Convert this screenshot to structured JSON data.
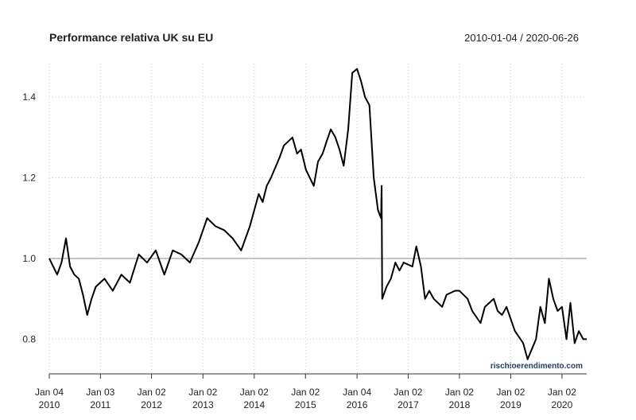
{
  "chart_data": {
    "type": "line",
    "title": "Performance relativa UK su EU",
    "subtitle": "2010-01-04 / 2020-06-26",
    "watermark": "rischioerendimento.com",
    "x": [
      "2010-01-04",
      "2010-02-01",
      "2010-03-01",
      "2010-04-01",
      "2010-05-03",
      "2010-06-01",
      "2010-07-01",
      "2010-08-02",
      "2010-09-01",
      "2010-10-01",
      "2010-11-01",
      "2010-12-01",
      "2011-02-01",
      "2011-04-01",
      "2011-06-01",
      "2011-08-01",
      "2011-10-03",
      "2011-12-01",
      "2012-02-01",
      "2012-04-02",
      "2012-06-01",
      "2012-08-01",
      "2012-10-01",
      "2012-12-03",
      "2013-02-01",
      "2013-04-01",
      "2013-06-03",
      "2013-08-01",
      "2013-10-01",
      "2013-12-02",
      "2014-02-03",
      "2014-03-03",
      "2014-04-01",
      "2014-05-01",
      "2014-07-01",
      "2014-08-01",
      "2014-10-01",
      "2014-11-03",
      "2014-12-01",
      "2015-01-05",
      "2015-02-02",
      "2015-03-02",
      "2015-04-01",
      "2015-05-04",
      "2015-06-01",
      "2015-07-01",
      "2015-08-03",
      "2015-09-01",
      "2015-10-01",
      "2015-11-02",
      "2015-12-01",
      "2016-01-04",
      "2016-02-01",
      "2016-03-01",
      "2016-04-01",
      "2016-05-02",
      "2016-06-01",
      "2016-06-23",
      "2016-06-27",
      "2016-07-01",
      "2016-08-01",
      "2016-09-01",
      "2016-10-03",
      "2016-11-01",
      "2016-12-01",
      "2017-02-01",
      "2017-03-01",
      "2017-04-03",
      "2017-05-02",
      "2017-06-01",
      "2017-07-03",
      "2017-09-01",
      "2017-10-02",
      "2017-12-01",
      "2018-01-02",
      "2018-03-01",
      "2018-04-03",
      "2018-06-01",
      "2018-07-02",
      "2018-09-03",
      "2018-10-01",
      "2018-11-01",
      "2018-12-03",
      "2019-02-01",
      "2019-04-01",
      "2019-05-02",
      "2019-07-01",
      "2019-08-01",
      "2019-09-02",
      "2019-10-01",
      "2019-11-01",
      "2019-12-02",
      "2020-01-02",
      "2020-02-03",
      "2020-03-02",
      "2020-04-01",
      "2020-05-01",
      "2020-06-01",
      "2020-06-26"
    ],
    "series": [
      {
        "name": "UK/EU",
        "color": "#000000",
        "values": [
          1.0,
          0.98,
          0.96,
          0.99,
          1.05,
          0.98,
          0.96,
          0.95,
          0.91,
          0.86,
          0.9,
          0.93,
          0.95,
          0.92,
          0.96,
          0.94,
          1.01,
          0.99,
          1.02,
          0.96,
          1.02,
          1.01,
          0.99,
          1.04,
          1.1,
          1.08,
          1.07,
          1.05,
          1.02,
          1.08,
          1.16,
          1.14,
          1.18,
          1.2,
          1.25,
          1.28,
          1.3,
          1.26,
          1.27,
          1.22,
          1.2,
          1.18,
          1.24,
          1.26,
          1.29,
          1.32,
          1.3,
          1.27,
          1.23,
          1.32,
          1.46,
          1.47,
          1.44,
          1.4,
          1.38,
          1.2,
          1.12,
          1.1,
          1.18,
          0.9,
          0.93,
          0.95,
          0.99,
          0.97,
          0.99,
          0.98,
          1.03,
          0.98,
          0.9,
          0.92,
          0.9,
          0.88,
          0.91,
          0.92,
          0.92,
          0.9,
          0.87,
          0.84,
          0.88,
          0.9,
          0.87,
          0.86,
          0.88,
          0.82,
          0.79,
          0.75,
          0.8,
          0.88,
          0.84,
          0.95,
          0.9,
          0.87,
          0.88,
          0.8,
          0.89,
          0.79,
          0.82,
          0.8,
          0.8
        ]
      }
    ],
    "xlim": [
      "2010-01-04",
      "2020-06-26"
    ],
    "xticks": [
      {
        "value": "2010-01-04",
        "label": "Jan 04\n2010"
      },
      {
        "value": "2011-01-03",
        "label": "Jan 03\n2011"
      },
      {
        "value": "2012-01-02",
        "label": "Jan 02\n2012"
      },
      {
        "value": "2013-01-02",
        "label": "Jan 02\n2013"
      },
      {
        "value": "2014-01-02",
        "label": "Jan 02\n2014"
      },
      {
        "value": "2015-01-02",
        "label": "Jan 02\n2015"
      },
      {
        "value": "2016-01-04",
        "label": "Jan 04\n2016"
      },
      {
        "value": "2017-01-02",
        "label": "Jan 02\n2017"
      },
      {
        "value": "2018-01-02",
        "label": "Jan 02\n2018"
      },
      {
        "value": "2019-01-02",
        "label": "Jan 02\n2019"
      },
      {
        "value": "2020-01-02",
        "label": "Jan 02\n2020"
      }
    ],
    "ylim": [
      0.714,
      1.483
    ],
    "yticks": [
      0.8,
      {
        "value": 1,
        "label": "1.0"
      },
      1.2,
      1.4
    ],
    "reference_line": 1,
    "grid": true
  }
}
